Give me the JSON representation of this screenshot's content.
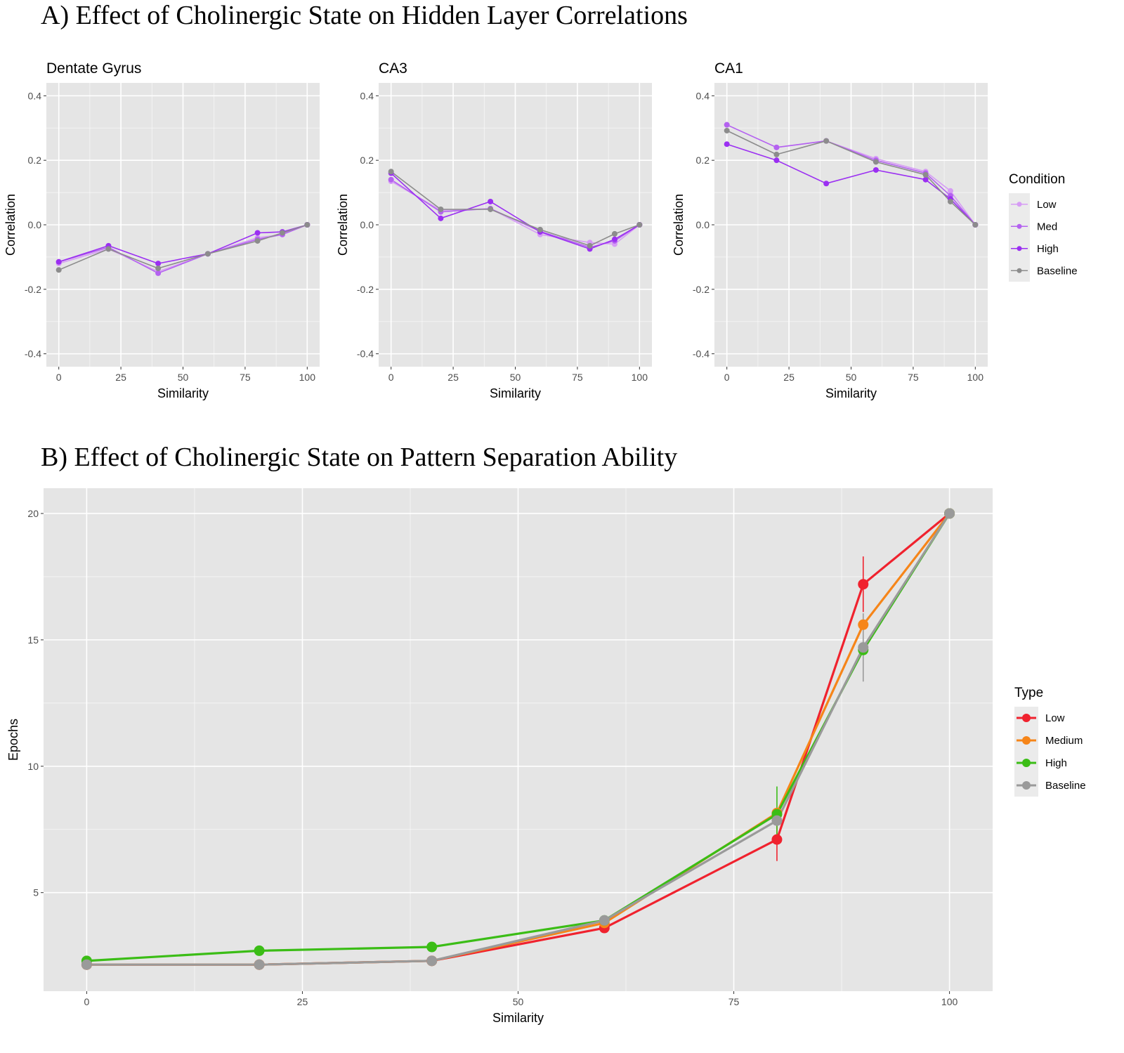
{
  "figure_a_title": "A) Effect of Cholinergic State on Hidden Layer Correlations",
  "figure_b_title": "B) Effect of Cholinergic State on Pattern Separation Ability",
  "chart_data": [
    {
      "type": "line",
      "title": "Dentate Gyrus",
      "xlabel": "Similarity",
      "ylabel": "Correlation",
      "x": [
        0,
        20,
        40,
        60,
        80,
        90,
        100
      ],
      "xticks": [
        0,
        25,
        50,
        75,
        100
      ],
      "yticks": [
        0.4,
        0.2,
        0.0,
        -0.2,
        -0.4
      ],
      "xlim": [
        -5,
        105
      ],
      "ylim": [
        -0.44,
        0.44
      ],
      "grid": true,
      "series": [
        {
          "name": "Low",
          "color": "#d69cf5",
          "values": [
            -0.12,
            -0.075,
            -0.145,
            -0.09,
            -0.04,
            -0.03,
            0.0
          ]
        },
        {
          "name": "Med",
          "color": "#b462f0",
          "values": [
            -0.115,
            -0.07,
            -0.15,
            -0.09,
            -0.045,
            -0.03,
            0.0
          ]
        },
        {
          "name": "High",
          "color": "#9b2ff2",
          "values": [
            -0.115,
            -0.065,
            -0.12,
            -0.09,
            -0.025,
            -0.022,
            0.0
          ]
        },
        {
          "name": "Baseline",
          "color": "#8c8c8c",
          "values": [
            -0.14,
            -0.075,
            -0.135,
            -0.09,
            -0.05,
            -0.025,
            0.0
          ]
        }
      ]
    },
    {
      "type": "line",
      "title": "CA3",
      "xlabel": "Similarity",
      "ylabel": "Correlation",
      "x": [
        0,
        20,
        40,
        60,
        80,
        90,
        100
      ],
      "xticks": [
        0,
        25,
        50,
        75,
        100
      ],
      "yticks": [
        0.4,
        0.2,
        0.0,
        -0.2,
        -0.4
      ],
      "xlim": [
        -5,
        105
      ],
      "ylim": [
        -0.44,
        0.44
      ],
      "grid": true,
      "series": [
        {
          "name": "Low",
          "color": "#d69cf5",
          "values": [
            0.135,
            0.045,
            0.05,
            -0.03,
            -0.055,
            -0.06,
            0.0
          ]
        },
        {
          "name": "Med",
          "color": "#b462f0",
          "values": [
            0.14,
            0.04,
            0.05,
            -0.02,
            -0.07,
            -0.05,
            0.0
          ]
        },
        {
          "name": "High",
          "color": "#9b2ff2",
          "values": [
            0.16,
            0.02,
            0.072,
            -0.022,
            -0.075,
            -0.045,
            0.0
          ]
        },
        {
          "name": "Baseline",
          "color": "#8c8c8c",
          "values": [
            0.165,
            0.048,
            0.048,
            -0.015,
            -0.065,
            -0.028,
            0.0
          ]
        }
      ]
    },
    {
      "type": "line",
      "title": "CA1",
      "xlabel": "Similarity",
      "ylabel": "Correlation",
      "x": [
        0,
        20,
        40,
        60,
        80,
        90,
        100
      ],
      "xticks": [
        0,
        25,
        50,
        75,
        100
      ],
      "yticks": [
        0.4,
        0.2,
        0.0,
        -0.2,
        -0.4
      ],
      "xlim": [
        -5,
        105
      ],
      "ylim": [
        -0.44,
        0.44
      ],
      "grid": true,
      "series": [
        {
          "name": "Low",
          "color": "#d69cf5",
          "values": [
            0.31,
            0.24,
            0.26,
            0.205,
            0.165,
            0.105,
            0.0
          ]
        },
        {
          "name": "Med",
          "color": "#b462f0",
          "values": [
            0.31,
            0.24,
            0.26,
            0.2,
            0.16,
            0.09,
            0.0
          ]
        },
        {
          "name": "High",
          "color": "#9b2ff2",
          "values": [
            0.25,
            0.2,
            0.128,
            0.17,
            0.14,
            0.08,
            0.0
          ]
        },
        {
          "name": "Baseline",
          "color": "#8c8c8c",
          "values": [
            0.292,
            0.218,
            0.26,
            0.195,
            0.155,
            0.072,
            0.0
          ]
        }
      ]
    },
    {
      "type": "line",
      "title": "",
      "xlabel": "Similarity",
      "ylabel": "Epochs",
      "x": [
        0,
        20,
        40,
        60,
        80,
        90,
        100
      ],
      "xticks": [
        0,
        25,
        50,
        75,
        100
      ],
      "yticks": [
        20,
        15,
        10,
        5
      ],
      "xlim": [
        -5,
        105
      ],
      "ylim": [
        1.1,
        21.0
      ],
      "grid": true,
      "series": [
        {
          "name": "Low",
          "color": "#f0222e",
          "values": [
            2.15,
            2.15,
            2.3,
            3.6,
            7.1,
            17.2,
            20
          ],
          "error": [
            0,
            0,
            0,
            0,
            0.85,
            1.1,
            0
          ]
        },
        {
          "name": "Medium",
          "color": "#f68519",
          "values": [
            2.15,
            2.15,
            2.3,
            3.8,
            8.15,
            15.6,
            20
          ],
          "error": [
            0,
            0,
            0,
            0,
            0,
            0,
            0
          ]
        },
        {
          "name": "High",
          "color": "#3bbd16",
          "values": [
            2.3,
            2.7,
            2.85,
            3.9,
            8.1,
            14.6,
            20
          ],
          "error": [
            0,
            0,
            0,
            0,
            1.1,
            0,
            0
          ]
        },
        {
          "name": "Baseline",
          "color": "#9a9a9a",
          "values": [
            2.15,
            2.15,
            2.3,
            3.9,
            7.85,
            14.7,
            20
          ],
          "error": [
            0,
            0,
            0,
            0.2,
            0,
            1.35,
            0
          ]
        }
      ]
    }
  ],
  "legend_a": {
    "title": "Condition",
    "items": [
      {
        "label": "Low",
        "color": "#d69cf5"
      },
      {
        "label": "Med",
        "color": "#b462f0"
      },
      {
        "label": "High",
        "color": "#9b2ff2"
      },
      {
        "label": "Baseline",
        "color": "#8c8c8c"
      }
    ]
  },
  "legend_b": {
    "title": "Type",
    "items": [
      {
        "label": "Low",
        "color": "#f0222e"
      },
      {
        "label": "Medium",
        "color": "#f68519"
      },
      {
        "label": "High",
        "color": "#3bbd16"
      },
      {
        "label": "Baseline",
        "color": "#9a9a9a"
      }
    ]
  },
  "colors": {
    "panel_background": "#e5e5e5",
    "gridline": "#ffffff"
  }
}
